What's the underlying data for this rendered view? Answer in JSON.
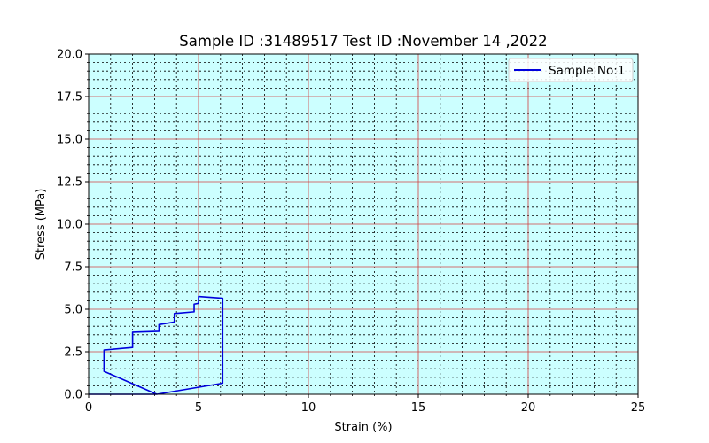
{
  "chart_data": {
    "type": "line",
    "title": "Sample ID :31489517 Test ID :November  14 ,2022",
    "xlabel": "Strain (%)",
    "ylabel": "Stress (MPa)",
    "xlim": [
      0,
      25
    ],
    "ylim": [
      0,
      20
    ],
    "x_ticks": [
      "0",
      "5",
      "10",
      "15",
      "20",
      "25"
    ],
    "y_ticks": [
      "0.0",
      "2.5",
      "5.0",
      "7.5",
      "10.0",
      "12.5",
      "15.0",
      "17.5",
      "20.0"
    ],
    "background_color": "#ccffff",
    "major_grid_color": "#d04040",
    "minor_grid_color": "#000000",
    "grid": true,
    "legend_position": "upper right",
    "series": [
      {
        "name": "Sample No:1",
        "color": "#0000dd",
        "x": [
          0.0,
          3.1,
          0.7,
          0.7,
          0.7,
          2.0,
          2.0,
          2.0,
          3.2,
          3.2,
          3.9,
          3.9,
          4.8,
          4.8,
          5.0,
          5.0,
          6.1,
          6.1,
          6.1,
          3.1,
          0.0
        ],
        "y": [
          0.0,
          0.0,
          1.35,
          1.6,
          2.6,
          2.75,
          3.3,
          3.65,
          3.7,
          4.1,
          4.25,
          4.75,
          4.85,
          5.3,
          5.35,
          5.75,
          5.65,
          5.2,
          0.65,
          0.0,
          0.0
        ]
      }
    ]
  }
}
